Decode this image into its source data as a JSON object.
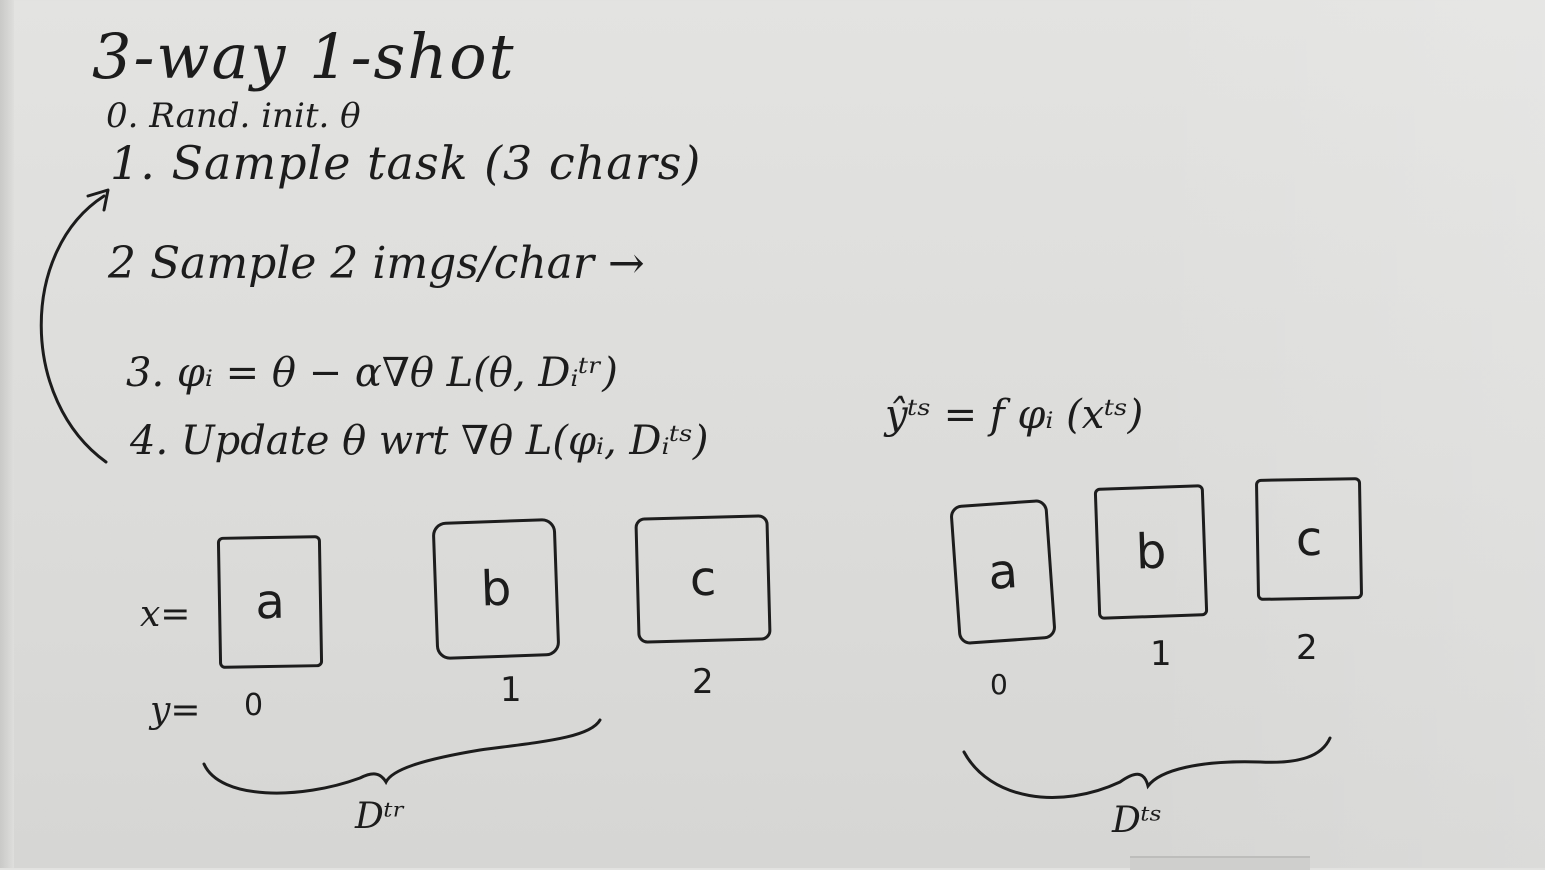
{
  "board": {
    "title": "3-way 1-shot",
    "steps": [
      "0. Rand. init. θ",
      "1. Sample task (3 chars)",
      "2 Sample 2 imgs/char →",
      "3. φᵢ = θ − α∇θ L(θ, Dᵢᵗʳ)",
      "4. Update θ wrt ∇θ L(φᵢ, Dᵢᵗˢ)"
    ],
    "prediction": "ŷᵗˢ = f φᵢ (xᵗˢ)",
    "x_label": "x=",
    "y_label": "y=",
    "train_cards": [
      {
        "letter": "a",
        "label": "0"
      },
      {
        "letter": "b",
        "label": "1"
      },
      {
        "letter": "c",
        "label": "2"
      }
    ],
    "test_cards": [
      {
        "letter": "a",
        "label": "0"
      },
      {
        "letter": "b",
        "label": "1"
      },
      {
        "letter": "c",
        "label": "2"
      }
    ],
    "train_brace_label": "Dᵗʳ",
    "test_brace_label": "Dᵗˢ"
  }
}
